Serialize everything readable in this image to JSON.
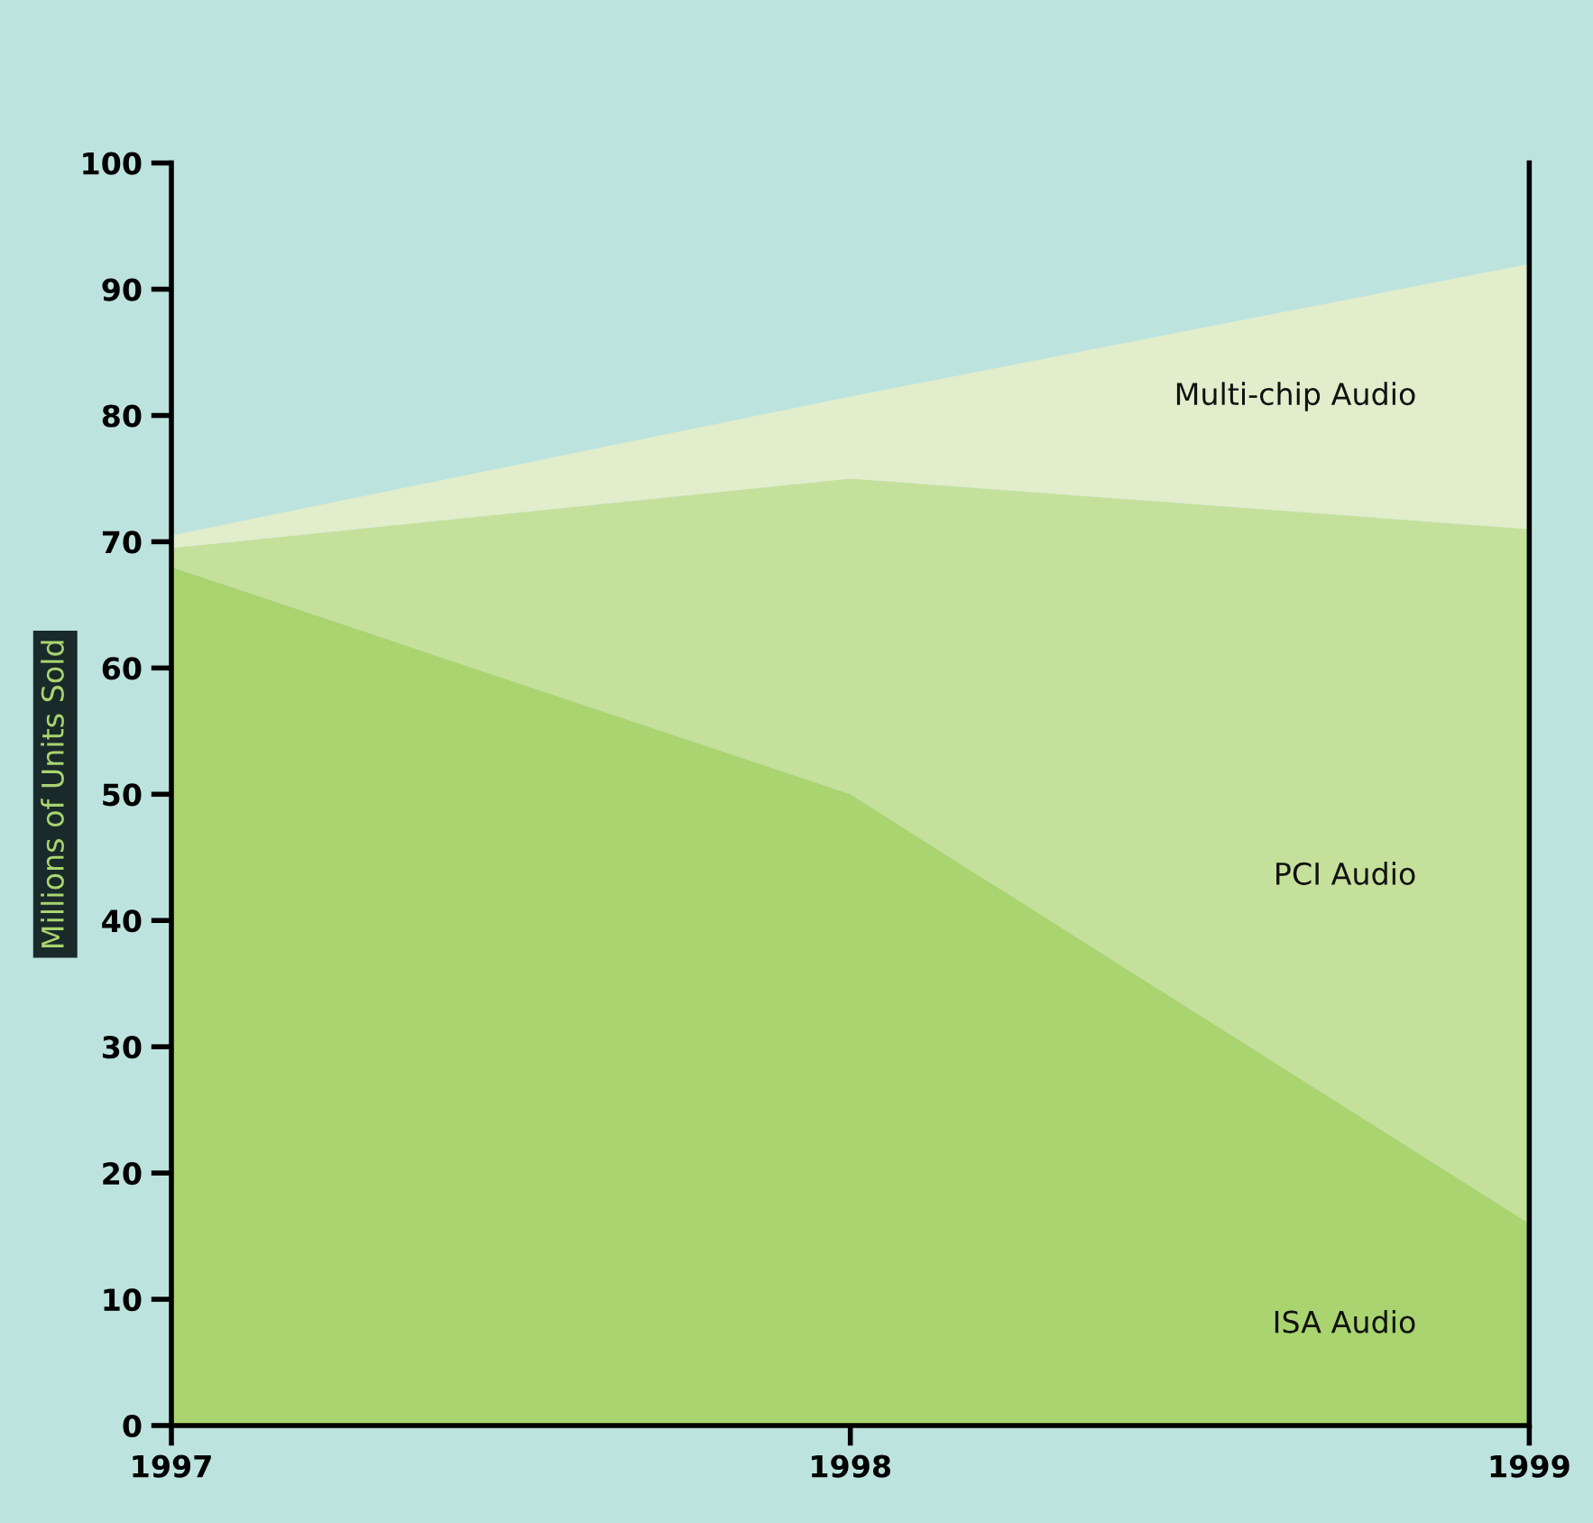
{
  "chart_data": {
    "type": "area",
    "stacked": true,
    "ylabel": "Millions of Units Sold",
    "x": [
      1997,
      1998,
      1999
    ],
    "xlim": [
      1997,
      1999
    ],
    "xticks": [
      1997,
      1998,
      1999
    ],
    "ylim": [
      0,
      100
    ],
    "yticks": [
      0,
      10,
      20,
      30,
      40,
      50,
      60,
      70,
      80,
      90,
      100
    ],
    "series": [
      {
        "name": "ISA Audio",
        "color": "#a9d46f",
        "values": [
          68,
          50,
          16
        ]
      },
      {
        "name": "PCI Audio",
        "color": "#c5e09b",
        "values": [
          1.5,
          25,
          55
        ]
      },
      {
        "name": "Multi-chip Audio",
        "color": "#e1edcb",
        "values": [
          1,
          6.5,
          21
        ]
      }
    ],
    "grid": false,
    "legend": false
  }
}
